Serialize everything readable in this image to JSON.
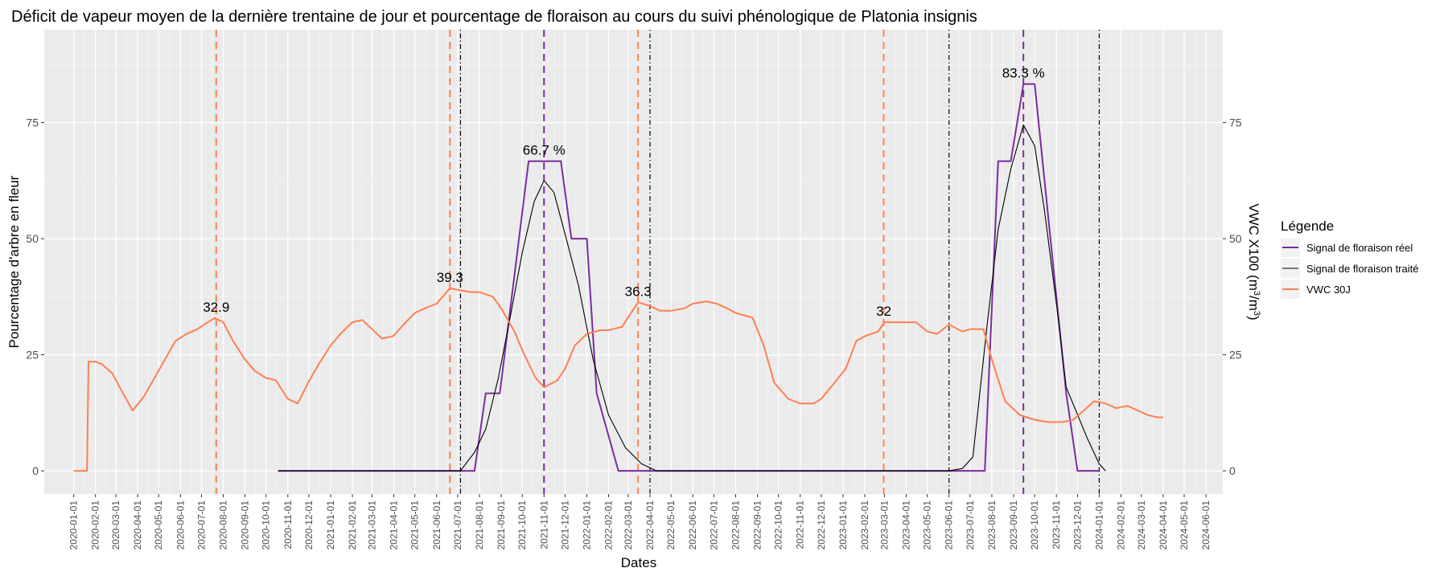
{
  "chart_data": {
    "type": "line",
    "title": "Déficit de vapeur moyen de la dernière trentaine de jour et pourcentage de floraison au cours du suivi phénologique de Platonia insignis",
    "xlabel": "Dates",
    "ylabel": "Pourcentage d'arbre en fleur",
    "ylabel_right_main": "VWC X100 (m",
    "ylabel_right_sup1": "3",
    "ylabel_right_mid": "/m",
    "ylabel_right_sup2": "3",
    "ylabel_right_end": ")",
    "ylim": [
      -5,
      95
    ],
    "xlim": [
      "2019-11-20",
      "2024-06-25"
    ],
    "y_ticks": [
      0,
      25,
      50,
      75
    ],
    "y_tick_labels": [
      "0",
      "25",
      "50",
      "75"
    ],
    "x_ticks": [
      "2020-01-01",
      "2020-02-01",
      "2020-03-01",
      "2020-04-01",
      "2020-05-01",
      "2020-06-01",
      "2020-07-01",
      "2020-08-01",
      "2020-09-01",
      "2020-10-01",
      "2020-11-01",
      "2020-12-01",
      "2021-01-01",
      "2021-02-01",
      "2021-03-01",
      "2021-04-01",
      "2021-05-01",
      "2021-06-01",
      "2021-07-01",
      "2021-08-01",
      "2021-09-01",
      "2021-10-01",
      "2021-11-01",
      "2021-12-01",
      "2022-01-01",
      "2022-02-01",
      "2022-03-01",
      "2022-04-01",
      "2022-05-01",
      "2022-06-01",
      "2022-07-01",
      "2022-08-01",
      "2022-09-01",
      "2022-10-01",
      "2022-11-01",
      "2022-12-01",
      "2023-01-01",
      "2023-02-01",
      "2023-03-01",
      "2023-04-01",
      "2023-05-01",
      "2023-06-01",
      "2023-07-01",
      "2023-08-01",
      "2023-09-01",
      "2023-10-01",
      "2023-11-01",
      "2023-12-01",
      "2024-01-01",
      "2024-02-01",
      "2024-03-01",
      "2024-04-01",
      "2024-05-01",
      "2024-06-01"
    ],
    "x_tick_labels": [
      "2020-01-01",
      "2020-02-01",
      "2020-03-01",
      "2020-04-01",
      "2020-05-01",
      "2020-06-01",
      "2020-07-01",
      "2020-08-01",
      "2020-09-01",
      "2020-10-01",
      "2020-11-01",
      "2020-12-01",
      "2021-01-01",
      "2021-02-01",
      "2021-03-01",
      "2021-04-01",
      "2021-05-01",
      "2021-06-01",
      "2021-07-01",
      "2021-08-01",
      "2021-09-01",
      "2021-10-01",
      "2021-11-01",
      "2021-12-01",
      "2022-01-01",
      "2022-02-01",
      "2022-03-01",
      "2022-04-01",
      "2022-05-01",
      "2022-06-01",
      "2022-07-01",
      "2022-08-01",
      "2022-09-01",
      "2022-10-01",
      "2022-11-01",
      "2022-12-01",
      "2023-01-01",
      "2023-02-01",
      "2023-03-01",
      "2023-04-01",
      "2023-05-01",
      "2023-06-01",
      "2023-07-01",
      "2023-08-01",
      "2023-09-01",
      "2023-10-01",
      "2023-11-01",
      "2023-12-01",
      "2024-01-01",
      "2024-02-01",
      "2024-03-01",
      "2024-04-01",
      "2024-05-01",
      "2024-06-01"
    ],
    "grid": true,
    "legend_placement": "right",
    "legend_title": "Légende",
    "series": [
      {
        "name": "Signal de floraison réel",
        "color": "#7b2d9e",
        "points": [
          [
            "2020-10-18",
            0
          ],
          [
            "2021-07-05",
            0
          ],
          [
            "2021-07-25",
            0
          ],
          [
            "2021-08-10",
            16.7
          ],
          [
            "2021-08-30",
            16.7
          ],
          [
            "2021-10-10",
            66.7
          ],
          [
            "2021-11-25",
            66.7
          ],
          [
            "2021-12-10",
            50
          ],
          [
            "2022-01-01",
            50
          ],
          [
            "2022-01-15",
            16.7
          ],
          [
            "2022-02-15",
            0
          ],
          [
            "2022-04-01",
            0
          ],
          [
            "2023-06-01",
            0
          ],
          [
            "2023-07-01",
            0
          ],
          [
            "2023-07-22",
            0
          ],
          [
            "2023-08-10",
            66.7
          ],
          [
            "2023-08-28",
            66.7
          ],
          [
            "2023-09-15",
            83.3
          ],
          [
            "2023-10-01",
            83.3
          ],
          [
            "2023-11-15",
            16.7
          ],
          [
            "2023-12-01",
            0
          ],
          [
            "2024-01-01",
            0
          ]
        ]
      },
      {
        "name": "Signal de floraison traité",
        "color": "#000000",
        "points": [
          [
            "2020-10-18",
            0
          ],
          [
            "2021-06-25",
            0
          ],
          [
            "2021-07-05",
            0
          ],
          [
            "2021-07-25",
            4
          ],
          [
            "2021-08-10",
            9
          ],
          [
            "2021-08-28",
            20
          ],
          [
            "2021-09-15",
            34
          ],
          [
            "2021-10-01",
            47
          ],
          [
            "2021-10-18",
            58
          ],
          [
            "2021-11-01",
            62.5
          ],
          [
            "2021-11-15",
            60
          ],
          [
            "2021-12-01",
            51
          ],
          [
            "2021-12-20",
            40
          ],
          [
            "2022-01-10",
            24
          ],
          [
            "2022-02-01",
            12
          ],
          [
            "2022-02-25",
            5
          ],
          [
            "2022-03-20",
            1.5
          ],
          [
            "2022-04-10",
            0
          ],
          [
            "2023-06-01",
            0
          ],
          [
            "2023-06-20",
            0.5
          ],
          [
            "2023-07-05",
            3
          ],
          [
            "2023-07-25",
            31
          ],
          [
            "2023-08-10",
            52
          ],
          [
            "2023-08-28",
            65
          ],
          [
            "2023-09-15",
            74.5
          ],
          [
            "2023-10-01",
            70
          ],
          [
            "2023-10-15",
            56
          ],
          [
            "2023-11-01",
            36
          ],
          [
            "2023-11-15",
            18
          ],
          [
            "2023-12-15",
            7
          ],
          [
            "2024-01-01",
            1.5
          ],
          [
            "2024-01-10",
            0
          ]
        ]
      },
      {
        "name": "VWC 30J",
        "color": "#ff7f50",
        "points": [
          [
            "2020-01-01",
            0
          ],
          [
            "2020-01-20",
            0
          ],
          [
            "2020-01-22",
            23.5
          ],
          [
            "2020-02-01",
            23.5
          ],
          [
            "2020-02-10",
            23
          ],
          [
            "2020-02-25",
            21
          ],
          [
            "2020-03-10",
            17
          ],
          [
            "2020-03-25",
            13
          ],
          [
            "2020-04-10",
            16
          ],
          [
            "2020-04-25",
            20
          ],
          [
            "2020-05-10",
            24
          ],
          [
            "2020-05-25",
            28
          ],
          [
            "2020-06-10",
            29.5
          ],
          [
            "2020-06-25",
            30.5
          ],
          [
            "2020-07-10",
            32
          ],
          [
            "2020-07-20",
            32.9
          ],
          [
            "2020-08-01",
            32
          ],
          [
            "2020-08-15",
            28
          ],
          [
            "2020-09-01",
            24
          ],
          [
            "2020-09-15",
            21.5
          ],
          [
            "2020-10-01",
            20
          ],
          [
            "2020-10-15",
            19.5
          ],
          [
            "2020-11-01",
            15.5
          ],
          [
            "2020-11-15",
            14.5
          ],
          [
            "2020-11-30",
            19
          ],
          [
            "2020-12-15",
            23
          ],
          [
            "2021-01-01",
            27
          ],
          [
            "2021-01-15",
            29.5
          ],
          [
            "2021-02-01",
            32
          ],
          [
            "2021-02-15",
            32.5
          ],
          [
            "2021-03-01",
            30.5
          ],
          [
            "2021-03-15",
            28.5
          ],
          [
            "2021-03-31",
            29
          ],
          [
            "2021-04-15",
            31.5
          ],
          [
            "2021-05-01",
            34
          ],
          [
            "2021-05-15",
            35
          ],
          [
            "2021-06-01",
            36
          ],
          [
            "2021-06-20",
            39.3
          ],
          [
            "2021-07-01",
            39
          ],
          [
            "2021-07-20",
            38.5
          ],
          [
            "2021-08-01",
            38.5
          ],
          [
            "2021-08-20",
            37.5
          ],
          [
            "2021-09-01",
            35
          ],
          [
            "2021-09-20",
            30
          ],
          [
            "2021-10-01",
            26
          ],
          [
            "2021-10-20",
            20
          ],
          [
            "2021-11-01",
            18
          ],
          [
            "2021-11-20",
            19.5
          ],
          [
            "2021-12-01",
            22
          ],
          [
            "2021-12-15",
            27
          ],
          [
            "2022-01-01",
            29.5
          ],
          [
            "2022-01-20",
            30.3
          ],
          [
            "2022-02-01",
            30.3
          ],
          [
            "2022-02-20",
            31
          ],
          [
            "2022-03-05",
            34
          ],
          [
            "2022-03-15",
            36.3
          ],
          [
            "2022-04-01",
            35.5
          ],
          [
            "2022-04-15",
            34.5
          ],
          [
            "2022-05-01",
            34.5
          ],
          [
            "2022-05-20",
            35
          ],
          [
            "2022-06-01",
            36
          ],
          [
            "2022-06-20",
            36.5
          ],
          [
            "2022-07-05",
            36
          ],
          [
            "2022-07-20",
            35
          ],
          [
            "2022-08-01",
            34
          ],
          [
            "2022-08-25",
            33
          ],
          [
            "2022-09-10",
            27
          ],
          [
            "2022-09-25",
            19
          ],
          [
            "2022-10-15",
            15.5
          ],
          [
            "2022-11-01",
            14.5
          ],
          [
            "2022-11-20",
            14.5
          ],
          [
            "2022-12-01",
            15.5
          ],
          [
            "2022-12-20",
            19
          ],
          [
            "2023-01-05",
            22
          ],
          [
            "2023-01-20",
            28
          ],
          [
            "2023-02-01",
            29
          ],
          [
            "2023-02-20",
            30
          ],
          [
            "2023-03-01",
            32
          ],
          [
            "2023-04-15",
            32
          ],
          [
            "2023-05-01",
            30
          ],
          [
            "2023-05-15",
            29.5
          ],
          [
            "2023-06-01",
            31.5
          ],
          [
            "2023-06-20",
            30
          ],
          [
            "2023-07-01",
            30.5
          ],
          [
            "2023-07-20",
            30.5
          ],
          [
            "2023-08-01",
            24
          ],
          [
            "2023-08-20",
            15
          ],
          [
            "2023-09-10",
            12
          ],
          [
            "2023-10-01",
            11
          ],
          [
            "2023-10-20",
            10.5
          ],
          [
            "2023-11-10",
            10.5
          ],
          [
            "2023-11-25",
            11
          ],
          [
            "2023-12-10",
            13
          ],
          [
            "2023-12-25",
            15
          ],
          [
            "2024-01-10",
            14.5
          ],
          [
            "2024-01-25",
            13.5
          ],
          [
            "2024-02-10",
            14
          ],
          [
            "2024-02-25",
            13
          ],
          [
            "2024-03-10",
            12
          ],
          [
            "2024-03-25",
            11.5
          ],
          [
            "2024-04-01",
            11.5
          ]
        ]
      }
    ],
    "vlines": [
      {
        "date": "2020-07-22",
        "color": "#ff7f50",
        "style": "dashed"
      },
      {
        "date": "2021-06-20",
        "color": "#ff7f50",
        "style": "dashed"
      },
      {
        "date": "2022-03-15",
        "color": "#ff7f50",
        "style": "dashed"
      },
      {
        "date": "2023-02-28",
        "color": "#ff7f50",
        "style": "dashed"
      },
      {
        "date": "2021-07-05",
        "color": "#000000",
        "style": "dotdash"
      },
      {
        "date": "2022-04-01",
        "color": "#000000",
        "style": "dotdash"
      },
      {
        "date": "2023-06-01",
        "color": "#000000",
        "style": "dotdash"
      },
      {
        "date": "2024-01-01",
        "color": "#000000",
        "style": "dotdash"
      },
      {
        "date": "2021-11-01",
        "color": "#7b2d9e",
        "style": "dashed"
      },
      {
        "date": "2023-09-15",
        "color": "#7b2d9e",
        "style": "dashed"
      }
    ],
    "annotations": [
      {
        "text": "32.9",
        "date": "2020-07-22",
        "y": 32.9
      },
      {
        "text": "39.3",
        "date": "2021-06-20",
        "y": 39.3
      },
      {
        "text": "36.3",
        "date": "2022-03-15",
        "y": 36.3
      },
      {
        "text": "32",
        "date": "2023-02-28",
        "y": 32
      },
      {
        "text": "66.7 %",
        "date": "2021-11-01",
        "y": 66.7
      },
      {
        "text": "83.3 %",
        "date": "2023-09-15",
        "y": 83.3
      }
    ]
  }
}
